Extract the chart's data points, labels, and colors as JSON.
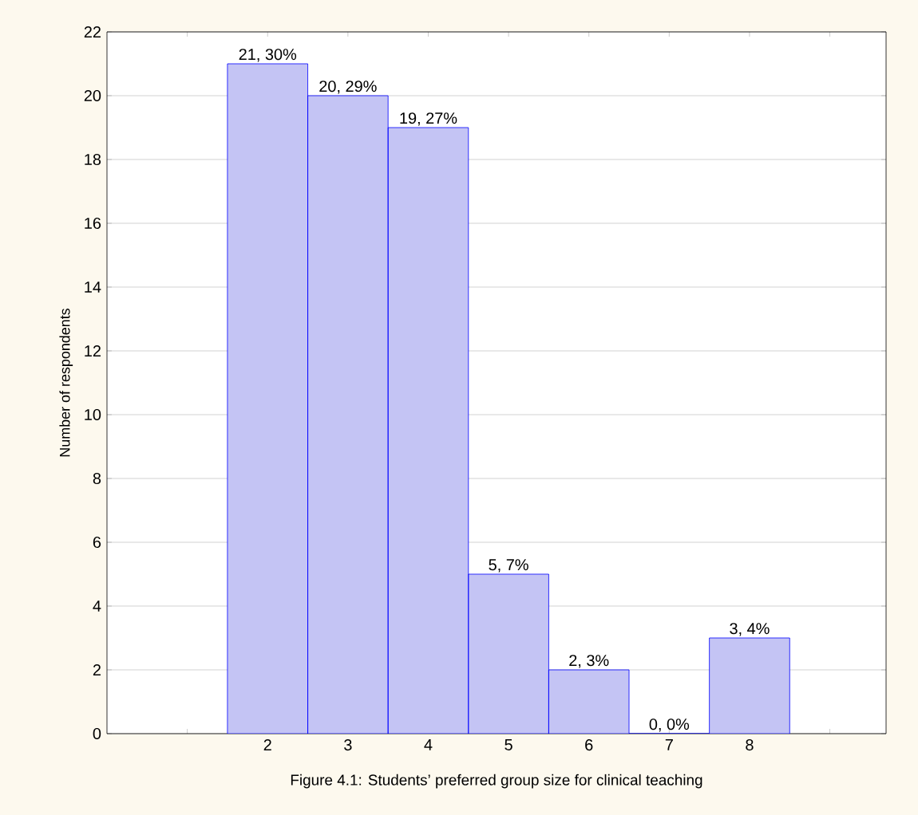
{
  "chart_data": {
    "type": "bar",
    "ylabel": "Number of respondents",
    "annotations": [
      "Figure 4.1:  Students’ preferred group size for clinical teaching"
    ],
    "x": [
      2,
      3,
      4,
      5,
      6,
      7,
      8
    ],
    "values": [
      21,
      20,
      19,
      5,
      2,
      0,
      3
    ],
    "value_labels": [
      "21, 30%",
      "20, 29%",
      "19, 27%",
      "5, 7%",
      "2, 3%",
      "0, 0%",
      "3, 4%"
    ],
    "color": "#c4c4f4",
    "xlim": [
      0,
      9.7
    ],
    "xticks": [
      {
        "value": 1,
        "label": null
      },
      2,
      3,
      4,
      5,
      6,
      7,
      8,
      {
        "value": 9,
        "label": null
      }
    ],
    "ylim": [
      0,
      22
    ],
    "yticks": [
      0,
      2,
      4,
      6,
      8,
      10,
      12,
      14,
      16,
      18,
      20,
      22
    ],
    "grid": "y"
  }
}
